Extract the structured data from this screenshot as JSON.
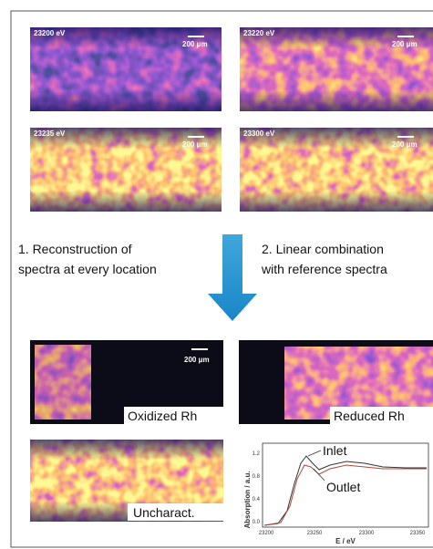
{
  "panels": [
    {
      "label": "23200 eV",
      "scale": "200 μm"
    },
    {
      "label": "23220 eV",
      "scale": "200 μm"
    },
    {
      "label": "23235 eV",
      "scale": "200 μm"
    },
    {
      "label": "23300 eV",
      "scale": "200 μm"
    }
  ],
  "steps": [
    {
      "lines": [
        "1. Reconstruction of",
        "spectra at every location"
      ]
    },
    {
      "lines": [
        "2. Linear combination",
        "with reference spectra"
      ]
    }
  ],
  "maps": [
    {
      "label": "Oxidized Rh",
      "scale": "200 μm"
    },
    {
      "label": "Reduced Rh"
    },
    {
      "label": "Uncharact."
    }
  ],
  "plot": {
    "ylabel": "Absorption / a.u.",
    "xlabel": "E / eV",
    "xticks": [
      "23200",
      "23250",
      "23300",
      "23350"
    ],
    "yticks": [
      "1.2",
      "0.8",
      "0.4",
      "0.0"
    ],
    "annotations": [
      "Inlet",
      "Outlet"
    ]
  }
}
